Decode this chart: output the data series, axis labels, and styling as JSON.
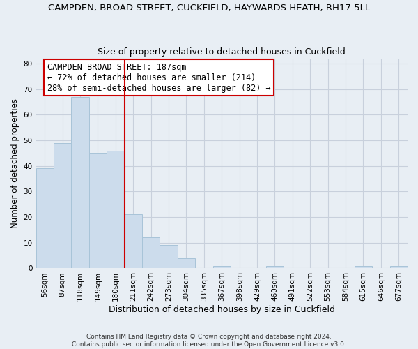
{
  "title": "CAMPDEN, BROAD STREET, CUCKFIELD, HAYWARDS HEATH, RH17 5LL",
  "subtitle": "Size of property relative to detached houses in Cuckfield",
  "xlabel": "Distribution of detached houses by size in Cuckfield",
  "ylabel": "Number of detached properties",
  "bar_labels": [
    "56sqm",
    "87sqm",
    "118sqm",
    "149sqm",
    "180sqm",
    "211sqm",
    "242sqm",
    "273sqm",
    "304sqm",
    "335sqm",
    "367sqm",
    "398sqm",
    "429sqm",
    "460sqm",
    "491sqm",
    "522sqm",
    "553sqm",
    "584sqm",
    "615sqm",
    "646sqm",
    "677sqm"
  ],
  "bar_values": [
    39,
    49,
    67,
    45,
    46,
    21,
    12,
    9,
    4,
    0,
    1,
    0,
    0,
    1,
    0,
    0,
    0,
    0,
    1,
    0,
    1
  ],
  "bar_color": "#ccdcec",
  "bar_edge_color": "#a8c4d8",
  "vline_x": 4.5,
  "vline_color": "#cc0000",
  "annotation_line1": "CAMPDEN BROAD STREET: 187sqm",
  "annotation_line2": "← 72% of detached houses are smaller (214)",
  "annotation_line3": "28% of semi-detached houses are larger (82) →",
  "annotation_box_color": "white",
  "annotation_box_edge": "#cc0000",
  "ylim_max": 82,
  "yticks": [
    0,
    10,
    20,
    30,
    40,
    50,
    60,
    70,
    80
  ],
  "grid_color": "#c8d0dc",
  "background_color": "#e8eef4",
  "plot_bg_color": "#e8eef4",
  "footnote": "Contains HM Land Registry data © Crown copyright and database right 2024.\nContains public sector information licensed under the Open Government Licence v3.0.",
  "title_fontsize": 9.5,
  "subtitle_fontsize": 9,
  "xlabel_fontsize": 9,
  "ylabel_fontsize": 8.5,
  "tick_fontsize": 7.5,
  "annotation_fontsize": 8.5,
  "footnote_fontsize": 6.5
}
